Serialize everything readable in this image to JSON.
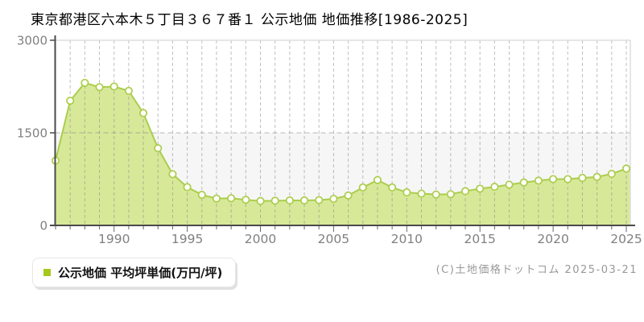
{
  "page": {
    "title": "東京都港区六本木５丁目３６７番１ 公示地価 地価推移[1986-2025]",
    "copyright": "(C)土地価格ドットコム 2025-03-21"
  },
  "legend": {
    "label": "公示地価 平均坪単価(万円/坪)",
    "marker_color": "#a6c81e"
  },
  "chart_data": {
    "type": "area",
    "title": "東京都港区六本木５丁目３６７番１ 公示地価 地価推移[1986-2025]",
    "x": [
      1986,
      1987,
      1988,
      1989,
      1990,
      1991,
      1992,
      1993,
      1994,
      1995,
      1996,
      1997,
      1998,
      1999,
      2000,
      2001,
      2002,
      2003,
      2004,
      2005,
      2006,
      2007,
      2008,
      2009,
      2010,
      2011,
      2012,
      2013,
      2014,
      2015,
      2016,
      2017,
      2018,
      2019,
      2020,
      2021,
      2022,
      2023,
      2024,
      2025
    ],
    "series": [
      {
        "name": "公示地価 平均坪単価(万円/坪)",
        "values": [
          1050,
          2020,
          2310,
          2240,
          2250,
          2180,
          1820,
          1250,
          830,
          620,
          495,
          435,
          440,
          415,
          395,
          400,
          405,
          405,
          410,
          430,
          485,
          615,
          735,
          615,
          535,
          515,
          500,
          505,
          555,
          595,
          625,
          660,
          695,
          725,
          750,
          750,
          770,
          785,
          835,
          920
        ]
      }
    ],
    "xlabel": "",
    "ylabel": "万円/坪",
    "ylim": [
      0,
      3000
    ],
    "yticks": [
      0,
      1500,
      3000
    ],
    "xtick_labels": [
      1990,
      1995,
      2000,
      2005,
      2010,
      2015,
      2020,
      2025
    ],
    "grid": "on",
    "legend_position": "bottom-left-outside",
    "colors": {
      "area_fill": "#d7e999",
      "line": "#abcd4d",
      "marker_fill": "#fffff8",
      "marker_stroke": "#abcd4d",
      "grid": "#808080",
      "band_lower": "#f6f6f6",
      "border": "#dddddd",
      "axis": "#4a4a4a",
      "tick": "#666666",
      "tick_label": "#808080"
    }
  }
}
